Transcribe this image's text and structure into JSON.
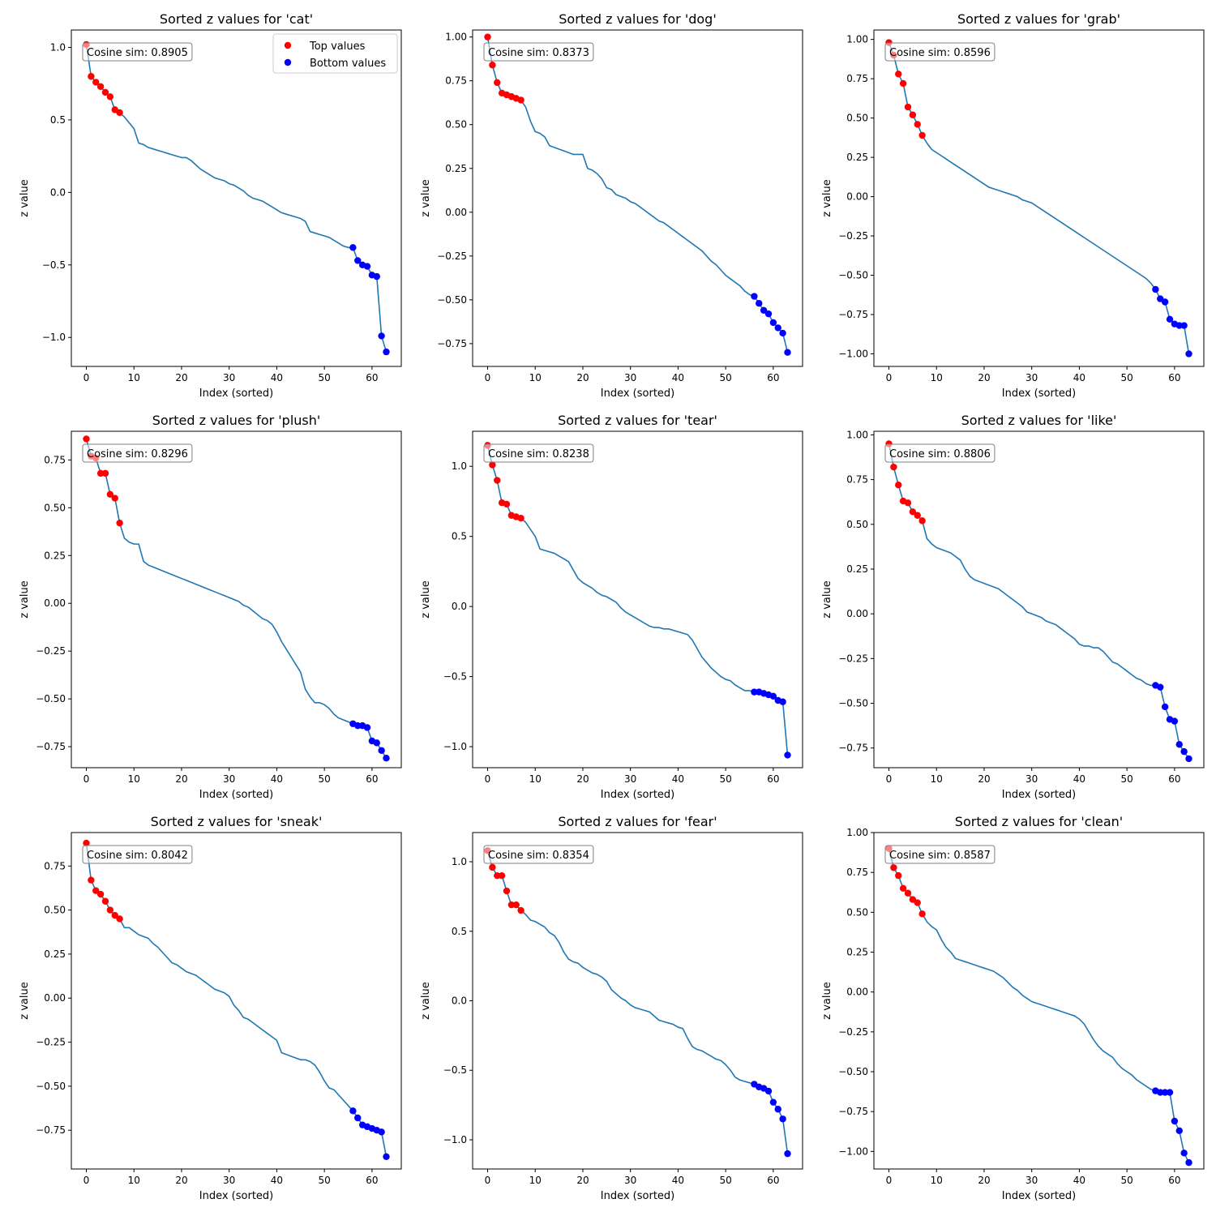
{
  "figure": {
    "annotation_prefix": "Cosine sim: ",
    "legend": {
      "top_label": "Top values",
      "bottom_label": "Bottom values",
      "placement": "upper-right (first panel only)"
    },
    "colors": {
      "line": "#1f77b4",
      "top": "#ff0000",
      "bottom": "#0000ff",
      "annotation_border": "#808080"
    }
  },
  "chart_data": [
    {
      "type": "line",
      "title": "Sorted z values for 'cat'",
      "xlabel": "Index (sorted)",
      "ylabel": "z value",
      "cosine": "0.8905",
      "xlim": [
        -3.15,
        66.15
      ],
      "ylim": [
        -1.2,
        1.12
      ],
      "yticks": [
        -1.0,
        -0.5,
        0.0,
        0.5,
        1.0
      ],
      "ytick_labels": [
        "−1.0",
        "−0.5",
        "0.0",
        "0.5",
        "1.0"
      ],
      "xticks": [
        0,
        10,
        20,
        30,
        40,
        50,
        60
      ],
      "xtick_labels": [
        "0",
        "10",
        "20",
        "30",
        "40",
        "50",
        "60"
      ],
      "show_legend": true,
      "values": [
        1.02,
        0.8,
        0.76,
        0.73,
        0.69,
        0.66,
        0.57,
        0.55,
        0.52,
        0.48,
        0.44,
        0.34,
        0.33,
        0.31,
        0.3,
        0.29,
        0.28,
        0.27,
        0.26,
        0.25,
        0.24,
        0.24,
        0.22,
        0.19,
        0.16,
        0.14,
        0.12,
        0.1,
        0.09,
        0.08,
        0.06,
        0.05,
        0.03,
        0.01,
        -0.02,
        -0.04,
        -0.05,
        -0.06,
        -0.08,
        -0.1,
        -0.12,
        -0.14,
        -0.15,
        -0.16,
        -0.17,
        -0.18,
        -0.2,
        -0.27,
        -0.28,
        -0.29,
        -0.3,
        -0.31,
        -0.33,
        -0.35,
        -0.37,
        -0.38,
        -0.38,
        -0.47,
        -0.5,
        -0.51,
        -0.57,
        -0.58,
        -0.99,
        -1.1
      ]
    },
    {
      "type": "line",
      "title": "Sorted z values for 'dog'",
      "xlabel": "Index (sorted)",
      "ylabel": "z value",
      "cosine": "0.8373",
      "xlim": [
        -3.15,
        66.15
      ],
      "ylim": [
        -0.88,
        1.04
      ],
      "yticks": [
        -0.75,
        -0.5,
        -0.25,
        0.0,
        0.25,
        0.5,
        0.75,
        1.0
      ],
      "ytick_labels": [
        "−0.75",
        "−0.50",
        "−0.25",
        "0.00",
        "0.25",
        "0.50",
        "0.75",
        "1.00"
      ],
      "xticks": [
        0,
        10,
        20,
        30,
        40,
        50,
        60
      ],
      "xtick_labels": [
        "0",
        "10",
        "20",
        "30",
        "40",
        "50",
        "60"
      ],
      "show_legend": false,
      "values": [
        1.0,
        0.84,
        0.74,
        0.68,
        0.67,
        0.66,
        0.65,
        0.64,
        0.6,
        0.52,
        0.46,
        0.45,
        0.43,
        0.38,
        0.37,
        0.36,
        0.35,
        0.34,
        0.33,
        0.33,
        0.33,
        0.25,
        0.24,
        0.22,
        0.19,
        0.14,
        0.13,
        0.1,
        0.09,
        0.08,
        0.06,
        0.05,
        0.03,
        0.01,
        -0.01,
        -0.03,
        -0.05,
        -0.06,
        -0.08,
        -0.1,
        -0.12,
        -0.14,
        -0.16,
        -0.18,
        -0.2,
        -0.22,
        -0.25,
        -0.28,
        -0.3,
        -0.33,
        -0.36,
        -0.38,
        -0.4,
        -0.42,
        -0.45,
        -0.47,
        -0.48,
        -0.52,
        -0.56,
        -0.58,
        -0.63,
        -0.66,
        -0.69,
        -0.8
      ]
    },
    {
      "type": "line",
      "title": "Sorted z values for 'grab'",
      "xlabel": "Index (sorted)",
      "ylabel": "z value",
      "cosine": "0.8596",
      "xlim": [
        -3.15,
        66.15
      ],
      "ylim": [
        -1.08,
        1.06
      ],
      "yticks": [
        -1.0,
        -0.75,
        -0.5,
        -0.25,
        0.0,
        0.25,
        0.5,
        0.75,
        1.0
      ],
      "ytick_labels": [
        "−1.00",
        "−0.75",
        "−0.50",
        "−0.25",
        "0.00",
        "0.25",
        "0.50",
        "0.75",
        "1.00"
      ],
      "xticks": [
        0,
        10,
        20,
        30,
        40,
        50,
        60
      ],
      "xtick_labels": [
        "0",
        "10",
        "20",
        "30",
        "40",
        "50",
        "60"
      ],
      "show_legend": false,
      "values": [
        0.98,
        0.9,
        0.78,
        0.72,
        0.57,
        0.52,
        0.46,
        0.39,
        0.34,
        0.3,
        0.28,
        0.26,
        0.24,
        0.22,
        0.2,
        0.18,
        0.16,
        0.14,
        0.12,
        0.1,
        0.08,
        0.06,
        0.05,
        0.04,
        0.03,
        0.02,
        0.01,
        0.0,
        -0.02,
        -0.03,
        -0.04,
        -0.06,
        -0.08,
        -0.1,
        -0.12,
        -0.14,
        -0.16,
        -0.18,
        -0.2,
        -0.22,
        -0.24,
        -0.26,
        -0.28,
        -0.3,
        -0.32,
        -0.34,
        -0.36,
        -0.38,
        -0.4,
        -0.42,
        -0.44,
        -0.46,
        -0.48,
        -0.5,
        -0.52,
        -0.55,
        -0.59,
        -0.65,
        -0.67,
        -0.78,
        -0.81,
        -0.82,
        -0.82,
        -1.0
      ]
    },
    {
      "type": "line",
      "title": "Sorted z values for 'plush'",
      "xlabel": "Index (sorted)",
      "ylabel": "z value",
      "cosine": "0.8296",
      "xlim": [
        -3.15,
        66.15
      ],
      "ylim": [
        -0.86,
        0.9
      ],
      "yticks": [
        -0.75,
        -0.5,
        -0.25,
        0.0,
        0.25,
        0.5,
        0.75
      ],
      "ytick_labels": [
        "−0.75",
        "−0.50",
        "−0.25",
        "0.00",
        "0.25",
        "0.50",
        "0.75"
      ],
      "xticks": [
        0,
        10,
        20,
        30,
        40,
        50,
        60
      ],
      "xtick_labels": [
        "0",
        "10",
        "20",
        "30",
        "40",
        "50",
        "60"
      ],
      "show_legend": false,
      "values": [
        0.86,
        0.77,
        0.76,
        0.68,
        0.68,
        0.57,
        0.55,
        0.42,
        0.34,
        0.32,
        0.31,
        0.31,
        0.22,
        0.2,
        0.19,
        0.18,
        0.17,
        0.16,
        0.15,
        0.14,
        0.13,
        0.12,
        0.11,
        0.1,
        0.09,
        0.08,
        0.07,
        0.06,
        0.05,
        0.04,
        0.03,
        0.02,
        0.01,
        -0.01,
        -0.02,
        -0.04,
        -0.06,
        -0.08,
        -0.09,
        -0.11,
        -0.15,
        -0.2,
        -0.24,
        -0.28,
        -0.32,
        -0.36,
        -0.45,
        -0.49,
        -0.52,
        -0.52,
        -0.53,
        -0.55,
        -0.58,
        -0.6,
        -0.61,
        -0.62,
        -0.63,
        -0.64,
        -0.64,
        -0.65,
        -0.72,
        -0.73,
        -0.77,
        -0.81
      ]
    },
    {
      "type": "line",
      "title": "Sorted z values for 'tear'",
      "xlabel": "Index (sorted)",
      "ylabel": "z value",
      "cosine": "0.8238",
      "xlim": [
        -3.15,
        66.15
      ],
      "ylim": [
        -1.15,
        1.25
      ],
      "yticks": [
        -1.0,
        -0.5,
        0.0,
        0.5,
        1.0
      ],
      "ytick_labels": [
        "−1.0",
        "−0.5",
        "0.0",
        "0.5",
        "1.0"
      ],
      "xticks": [
        0,
        10,
        20,
        30,
        40,
        50,
        60
      ],
      "xtick_labels": [
        "0",
        "10",
        "20",
        "30",
        "40",
        "50",
        "60"
      ],
      "show_legend": false,
      "values": [
        1.15,
        1.01,
        0.9,
        0.74,
        0.73,
        0.65,
        0.64,
        0.63,
        0.6,
        0.55,
        0.5,
        0.41,
        0.4,
        0.39,
        0.38,
        0.36,
        0.34,
        0.32,
        0.26,
        0.2,
        0.17,
        0.15,
        0.13,
        0.1,
        0.08,
        0.07,
        0.05,
        0.03,
        -0.01,
        -0.04,
        -0.06,
        -0.08,
        -0.1,
        -0.12,
        -0.14,
        -0.15,
        -0.15,
        -0.16,
        -0.16,
        -0.17,
        -0.18,
        -0.19,
        -0.2,
        -0.24,
        -0.3,
        -0.36,
        -0.4,
        -0.44,
        -0.47,
        -0.5,
        -0.52,
        -0.53,
        -0.56,
        -0.58,
        -0.6,
        -0.6,
        -0.61,
        -0.61,
        -0.62,
        -0.63,
        -0.64,
        -0.67,
        -0.68,
        -1.06
      ]
    },
    {
      "type": "line",
      "title": "Sorted z values for 'like'",
      "xlabel": "Index (sorted)",
      "ylabel": "z value",
      "cosine": "0.8806",
      "xlim": [
        -3.15,
        66.15
      ],
      "ylim": [
        -0.86,
        1.02
      ],
      "yticks": [
        -0.75,
        -0.5,
        -0.25,
        0.0,
        0.25,
        0.5,
        0.75,
        1.0
      ],
      "ytick_labels": [
        "−0.75",
        "−0.50",
        "−0.25",
        "0.00",
        "0.25",
        "0.50",
        "0.75",
        "1.00"
      ],
      "xticks": [
        0,
        10,
        20,
        30,
        40,
        50,
        60
      ],
      "xtick_labels": [
        "0",
        "10",
        "20",
        "30",
        "40",
        "50",
        "60"
      ],
      "show_legend": false,
      "values": [
        0.95,
        0.82,
        0.72,
        0.63,
        0.62,
        0.57,
        0.55,
        0.52,
        0.42,
        0.39,
        0.37,
        0.36,
        0.35,
        0.34,
        0.32,
        0.3,
        0.25,
        0.21,
        0.19,
        0.18,
        0.17,
        0.16,
        0.15,
        0.14,
        0.12,
        0.1,
        0.08,
        0.06,
        0.04,
        0.01,
        0.0,
        -0.01,
        -0.02,
        -0.04,
        -0.05,
        -0.06,
        -0.08,
        -0.1,
        -0.12,
        -0.14,
        -0.17,
        -0.18,
        -0.18,
        -0.19,
        -0.19,
        -0.21,
        -0.24,
        -0.27,
        -0.28,
        -0.3,
        -0.32,
        -0.34,
        -0.36,
        -0.37,
        -0.39,
        -0.4,
        -0.4,
        -0.41,
        -0.52,
        -0.59,
        -0.6,
        -0.73,
        -0.77,
        -0.81
      ]
    },
    {
      "type": "line",
      "title": "Sorted z values for 'sneak'",
      "xlabel": "Index (sorted)",
      "ylabel": "z value",
      "cosine": "0.8042",
      "xlim": [
        -3.15,
        66.15
      ],
      "ylim": [
        -0.97,
        0.94
      ],
      "yticks": [
        -0.75,
        -0.5,
        -0.25,
        0.0,
        0.25,
        0.5,
        0.75
      ],
      "ytick_labels": [
        "−0.75",
        "−0.50",
        "−0.25",
        "0.00",
        "0.25",
        "0.50",
        "0.75"
      ],
      "xticks": [
        0,
        10,
        20,
        30,
        40,
        50,
        60
      ],
      "xtick_labels": [
        "0",
        "10",
        "20",
        "30",
        "40",
        "50",
        "60"
      ],
      "show_legend": false,
      "values": [
        0.88,
        0.67,
        0.61,
        0.59,
        0.55,
        0.5,
        0.47,
        0.45,
        0.4,
        0.4,
        0.38,
        0.36,
        0.35,
        0.34,
        0.31,
        0.29,
        0.26,
        0.23,
        0.2,
        0.19,
        0.17,
        0.15,
        0.14,
        0.13,
        0.11,
        0.09,
        0.07,
        0.05,
        0.04,
        0.03,
        0.01,
        -0.04,
        -0.07,
        -0.11,
        -0.12,
        -0.14,
        -0.16,
        -0.18,
        -0.2,
        -0.22,
        -0.24,
        -0.31,
        -0.32,
        -0.33,
        -0.34,
        -0.35,
        -0.35,
        -0.36,
        -0.38,
        -0.42,
        -0.47,
        -0.51,
        -0.52,
        -0.55,
        -0.58,
        -0.61,
        -0.64,
        -0.68,
        -0.72,
        -0.73,
        -0.74,
        -0.75,
        -0.76,
        -0.9
      ]
    },
    {
      "type": "line",
      "title": "Sorted z values for 'fear'",
      "xlabel": "Index (sorted)",
      "ylabel": "z value",
      "cosine": "0.8354",
      "xlim": [
        -3.15,
        66.15
      ],
      "ylim": [
        -1.21,
        1.21
      ],
      "yticks": [
        -1.0,
        -0.5,
        0.0,
        0.5,
        1.0
      ],
      "ytick_labels": [
        "−1.0",
        "−0.5",
        "0.0",
        "0.5",
        "1.0"
      ],
      "xticks": [
        0,
        10,
        20,
        30,
        40,
        50,
        60
      ],
      "xtick_labels": [
        "0",
        "10",
        "20",
        "30",
        "40",
        "50",
        "60"
      ],
      "show_legend": false,
      "values": [
        1.08,
        0.96,
        0.9,
        0.9,
        0.79,
        0.69,
        0.69,
        0.65,
        0.62,
        0.58,
        0.57,
        0.55,
        0.53,
        0.49,
        0.47,
        0.42,
        0.35,
        0.3,
        0.28,
        0.27,
        0.24,
        0.22,
        0.2,
        0.19,
        0.17,
        0.14,
        0.08,
        0.05,
        0.02,
        0.0,
        -0.03,
        -0.05,
        -0.06,
        -0.07,
        -0.08,
        -0.11,
        -0.14,
        -0.15,
        -0.16,
        -0.17,
        -0.19,
        -0.2,
        -0.27,
        -0.33,
        -0.35,
        -0.36,
        -0.38,
        -0.4,
        -0.42,
        -0.43,
        -0.46,
        -0.5,
        -0.55,
        -0.57,
        -0.58,
        -0.59,
        -0.6,
        -0.62,
        -0.63,
        -0.65,
        -0.73,
        -0.78,
        -0.85,
        -1.1
      ]
    },
    {
      "type": "line",
      "title": "Sorted z values for 'clean'",
      "xlabel": "Index (sorted)",
      "ylabel": "z value",
      "cosine": "0.8587",
      "xlim": [
        -3.15,
        66.15
      ],
      "ylim": [
        -1.11,
        1.0
      ],
      "yticks": [
        -1.0,
        -0.75,
        -0.5,
        -0.25,
        0.0,
        0.25,
        0.5,
        0.75,
        1.0
      ],
      "ytick_labels": [
        "−1.00",
        "−0.75",
        "−0.50",
        "−0.25",
        "0.00",
        "0.25",
        "0.50",
        "0.75",
        "1.00"
      ],
      "xticks": [
        0,
        10,
        20,
        30,
        40,
        50,
        60
      ],
      "xtick_labels": [
        "0",
        "10",
        "20",
        "30",
        "40",
        "50",
        "60"
      ],
      "show_legend": false,
      "values": [
        0.9,
        0.78,
        0.73,
        0.65,
        0.62,
        0.58,
        0.56,
        0.49,
        0.44,
        0.41,
        0.39,
        0.33,
        0.28,
        0.25,
        0.21,
        0.2,
        0.19,
        0.18,
        0.17,
        0.16,
        0.15,
        0.14,
        0.13,
        0.11,
        0.09,
        0.06,
        0.03,
        0.01,
        -0.02,
        -0.04,
        -0.06,
        -0.07,
        -0.08,
        -0.09,
        -0.1,
        -0.11,
        -0.12,
        -0.13,
        -0.14,
        -0.15,
        -0.17,
        -0.2,
        -0.25,
        -0.3,
        -0.34,
        -0.37,
        -0.39,
        -0.41,
        -0.45,
        -0.48,
        -0.5,
        -0.52,
        -0.55,
        -0.57,
        -0.59,
        -0.61,
        -0.62,
        -0.63,
        -0.63,
        -0.63,
        -0.81,
        -0.87,
        -1.01,
        -1.07
      ]
    }
  ]
}
